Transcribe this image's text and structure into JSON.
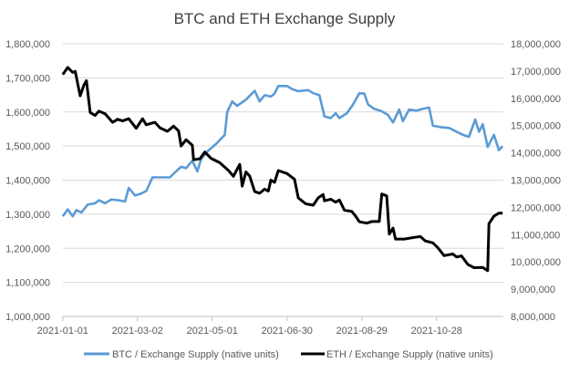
{
  "chart_data": {
    "type": "line",
    "title": "BTC and ETH Exchange Supply",
    "xlabel": "",
    "ylabel": "",
    "y2label": "",
    "grid": true,
    "legend_position": "bottom",
    "x_range": [
      "2021-01-01",
      "2021-12-20"
    ],
    "x_ticks": [
      "2021-01-01",
      "2021-03-02",
      "2021-05-01",
      "2021-06-30",
      "2021-08-29",
      "2021-10-28"
    ],
    "ylim_left": [
      1000000,
      1800000
    ],
    "y_ticks_left": [
      "1,000,000",
      "1,100,000",
      "1,200,000",
      "1,300,000",
      "1,400,000",
      "1,500,000",
      "1,600,000",
      "1,700,000",
      "1,800,000"
    ],
    "ylim_right": [
      8000000,
      18000000
    ],
    "y_ticks_right": [
      "8,000,000",
      "9,000,000",
      "10,000,000",
      "11,000,000",
      "12,000,000",
      "13,000,000",
      "14,000,000",
      "15,000,000",
      "16,000,000",
      "17,000,000",
      "18,000,000"
    ],
    "series": [
      {
        "name": "BTC / Exchange Supply (native units)",
        "axis": "left",
        "color": "#5B9BD5",
        "points": [
          [
            "2021-01-01",
            1294000
          ],
          [
            "2021-01-05",
            1314000
          ],
          [
            "2021-01-09",
            1294000
          ],
          [
            "2021-01-12",
            1312000
          ],
          [
            "2021-01-16",
            1305000
          ],
          [
            "2021-01-21",
            1328000
          ],
          [
            "2021-01-27",
            1332000
          ],
          [
            "2021-01-30",
            1341000
          ],
          [
            "2021-02-04",
            1332000
          ],
          [
            "2021-02-09",
            1343000
          ],
          [
            "2021-02-15",
            1341000
          ],
          [
            "2021-02-20",
            1337000
          ],
          [
            "2021-02-23",
            1377000
          ],
          [
            "2021-02-28",
            1355000
          ],
          [
            "2021-03-04",
            1359000
          ],
          [
            "2021-03-09",
            1368000
          ],
          [
            "2021-03-14",
            1408000
          ],
          [
            "2021-03-22",
            1408000
          ],
          [
            "2021-03-28",
            1408000
          ],
          [
            "2021-04-02",
            1426000
          ],
          [
            "2021-04-06",
            1439000
          ],
          [
            "2021-04-10",
            1435000
          ],
          [
            "2021-04-15",
            1457000
          ],
          [
            "2021-04-19",
            1426000
          ],
          [
            "2021-04-22",
            1461000
          ],
          [
            "2021-04-27",
            1484000
          ],
          [
            "2021-05-04",
            1506000
          ],
          [
            "2021-05-11",
            1533000
          ],
          [
            "2021-05-13",
            1600000
          ],
          [
            "2021-05-17",
            1631000
          ],
          [
            "2021-05-21",
            1618000
          ],
          [
            "2021-05-28",
            1636000
          ],
          [
            "2021-06-04",
            1662000
          ],
          [
            "2021-06-08",
            1631000
          ],
          [
            "2021-06-12",
            1649000
          ],
          [
            "2021-06-17",
            1645000
          ],
          [
            "2021-06-20",
            1654000
          ],
          [
            "2021-06-23",
            1676000
          ],
          [
            "2021-06-30",
            1676000
          ],
          [
            "2021-07-04",
            1667000
          ],
          [
            "2021-07-09",
            1661000
          ],
          [
            "2021-07-17",
            1664000
          ],
          [
            "2021-07-21",
            1655000
          ],
          [
            "2021-07-26",
            1649000
          ],
          [
            "2021-07-30",
            1587000
          ],
          [
            "2021-08-04",
            1582000
          ],
          [
            "2021-08-08",
            1596000
          ],
          [
            "2021-08-11",
            1582000
          ],
          [
            "2021-08-17",
            1596000
          ],
          [
            "2021-08-22",
            1622000
          ],
          [
            "2021-08-27",
            1655000
          ],
          [
            "2021-08-31",
            1654000
          ],
          [
            "2021-09-03",
            1622000
          ],
          [
            "2021-09-08",
            1609000
          ],
          [
            "2021-09-14",
            1602000
          ],
          [
            "2021-09-19",
            1591000
          ],
          [
            "2021-09-23",
            1569000
          ],
          [
            "2021-09-28",
            1607000
          ],
          [
            "2021-10-01",
            1573000
          ],
          [
            "2021-10-06",
            1607000
          ],
          [
            "2021-10-12",
            1604000
          ],
          [
            "2021-10-17",
            1609000
          ],
          [
            "2021-10-22",
            1613000
          ],
          [
            "2021-10-25",
            1560000
          ],
          [
            "2021-11-01",
            1555000
          ],
          [
            "2021-11-07",
            1553000
          ],
          [
            "2021-11-13",
            1542000
          ],
          [
            "2021-11-18",
            1533000
          ],
          [
            "2021-11-23",
            1527000
          ],
          [
            "2021-11-28",
            1578000
          ],
          [
            "2021-12-01",
            1542000
          ],
          [
            "2021-12-04",
            1564000
          ],
          [
            "2021-12-08",
            1497000
          ],
          [
            "2021-12-13",
            1533000
          ],
          [
            "2021-12-17",
            1488000
          ],
          [
            "2021-12-20",
            1499000
          ]
        ]
      },
      {
        "name": "ETH / Exchange Supply (native units)",
        "axis": "right",
        "color": "#000000",
        "points": [
          [
            "2021-01-01",
            16870000
          ],
          [
            "2021-01-05",
            17130000
          ],
          [
            "2021-01-09",
            16950000
          ],
          [
            "2021-01-11",
            16990000
          ],
          [
            "2021-01-15",
            16090000
          ],
          [
            "2021-01-18",
            16480000
          ],
          [
            "2021-01-20",
            16650000
          ],
          [
            "2021-01-23",
            15480000
          ],
          [
            "2021-01-27",
            15370000
          ],
          [
            "2021-01-30",
            15530000
          ],
          [
            "2021-02-04",
            15430000
          ],
          [
            "2021-02-10",
            15120000
          ],
          [
            "2021-02-14",
            15230000
          ],
          [
            "2021-02-18",
            15170000
          ],
          [
            "2021-02-23",
            15250000
          ],
          [
            "2021-03-01",
            14900000
          ],
          [
            "2021-03-06",
            15250000
          ],
          [
            "2021-03-09",
            15030000
          ],
          [
            "2021-03-16",
            15120000
          ],
          [
            "2021-03-20",
            14920000
          ],
          [
            "2021-03-26",
            14790000
          ],
          [
            "2021-03-31",
            14980000
          ],
          [
            "2021-04-04",
            14800000
          ],
          [
            "2021-04-06",
            14250000
          ],
          [
            "2021-04-10",
            14480000
          ],
          [
            "2021-04-15",
            14280000
          ],
          [
            "2021-04-16",
            13750000
          ],
          [
            "2021-04-21",
            13780000
          ],
          [
            "2021-04-25",
            14030000
          ],
          [
            "2021-04-30",
            13800000
          ],
          [
            "2021-05-07",
            13640000
          ],
          [
            "2021-05-14",
            13350000
          ],
          [
            "2021-05-18",
            13140000
          ],
          [
            "2021-05-23",
            13580000
          ],
          [
            "2021-05-25",
            12780000
          ],
          [
            "2021-05-28",
            13300000
          ],
          [
            "2021-05-31",
            13150000
          ],
          [
            "2021-06-04",
            12580000
          ],
          [
            "2021-06-08",
            12520000
          ],
          [
            "2021-06-12",
            12670000
          ],
          [
            "2021-06-15",
            12600000
          ],
          [
            "2021-06-17",
            13000000
          ],
          [
            "2021-06-20",
            12920000
          ],
          [
            "2021-06-23",
            13350000
          ],
          [
            "2021-06-30",
            13240000
          ],
          [
            "2021-07-06",
            13030000
          ],
          [
            "2021-07-09",
            12350000
          ],
          [
            "2021-07-15",
            12130000
          ],
          [
            "2021-07-21",
            12080000
          ],
          [
            "2021-07-25",
            12350000
          ],
          [
            "2021-07-29",
            12470000
          ],
          [
            "2021-07-30",
            12240000
          ],
          [
            "2021-08-04",
            12300000
          ],
          [
            "2021-08-08",
            12190000
          ],
          [
            "2021-08-11",
            12270000
          ],
          [
            "2021-08-15",
            11900000
          ],
          [
            "2021-08-21",
            11850000
          ],
          [
            "2021-08-24",
            11680000
          ],
          [
            "2021-08-27",
            11470000
          ],
          [
            "2021-09-02",
            11420000
          ],
          [
            "2021-09-06",
            11480000
          ],
          [
            "2021-09-12",
            11480000
          ],
          [
            "2021-09-14",
            12490000
          ],
          [
            "2021-09-18",
            12420000
          ],
          [
            "2021-09-20",
            11020000
          ],
          [
            "2021-09-23",
            11240000
          ],
          [
            "2021-09-25",
            10840000
          ],
          [
            "2021-10-02",
            10840000
          ],
          [
            "2021-10-10",
            10900000
          ],
          [
            "2021-10-15",
            10930000
          ],
          [
            "2021-10-19",
            10770000
          ],
          [
            "2021-10-25",
            10700000
          ],
          [
            "2021-10-29",
            10520000
          ],
          [
            "2021-11-03",
            10230000
          ],
          [
            "2021-11-10",
            10290000
          ],
          [
            "2021-11-13",
            10180000
          ],
          [
            "2021-11-17",
            10220000
          ],
          [
            "2021-11-22",
            9910000
          ],
          [
            "2021-11-27",
            9790000
          ],
          [
            "2021-12-04",
            9800000
          ],
          [
            "2021-12-08",
            9680000
          ],
          [
            "2021-12-09",
            11400000
          ],
          [
            "2021-12-13",
            11680000
          ],
          [
            "2021-12-17",
            11790000
          ],
          [
            "2021-12-20",
            11790000
          ]
        ]
      }
    ]
  }
}
